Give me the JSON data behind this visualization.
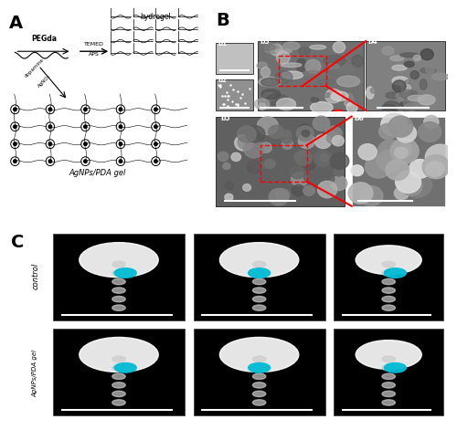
{
  "title_A": "A",
  "title_B": "B",
  "title_C": "C",
  "label_hydrogel": "hydrogel",
  "label_PEGda": "PEGda",
  "label_TEMED": "TEMED",
  "label_APS": "APS",
  "label_dopamine": "dopamine",
  "label_AgNO3": "AgNO₃",
  "label_AgNPs_PDA": "AgNPs/PDA gel",
  "label_control": "control",
  "label_AgNPs_PDA_gel": "AgNPs/PDA gel",
  "bg_color": "#ffffff",
  "panel_bg": "#d0d0d0",
  "sem_bg": "#888888",
  "ct_bg": "#000000",
  "cyan_color": "#00bcd4",
  "red_color": "#cc0000"
}
